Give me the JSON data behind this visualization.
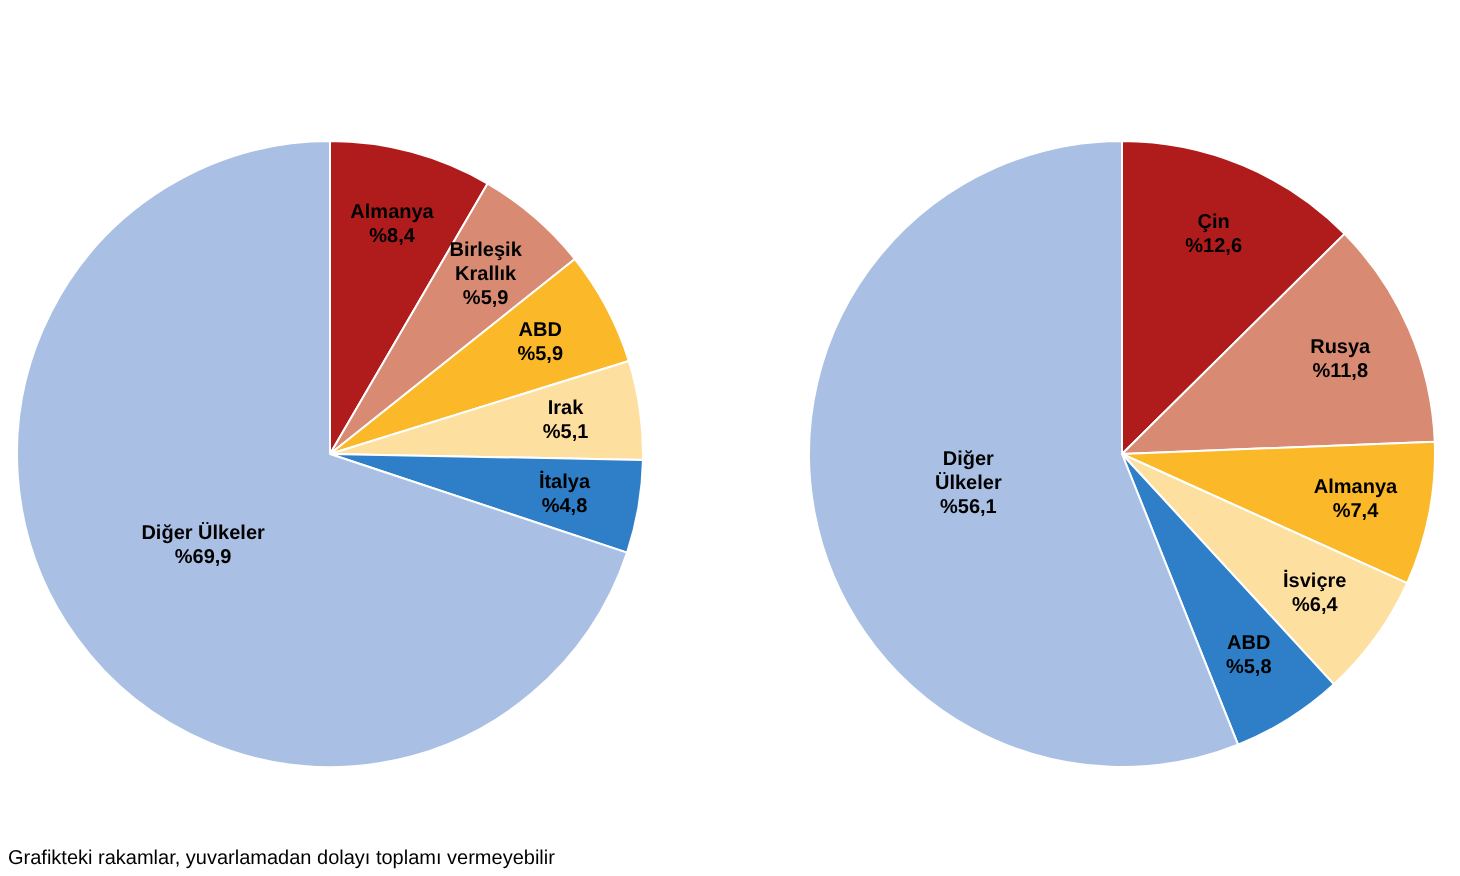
{
  "chart_data": [
    {
      "type": "pie",
      "categories": [
        "Almanya",
        "Birleşik Krallık",
        "ABD",
        "Irak",
        "İtalya",
        "Diğer Ülkeler"
      ],
      "values": [
        8.4,
        5.9,
        5.9,
        5.1,
        4.8,
        69.9
      ],
      "colors": [
        "#b01c1c",
        "#d98a72",
        "#fbb829",
        "#fde0a0",
        "#2e7fc8",
        "#a9c0e4"
      ],
      "value_labels": [
        "%8,4",
        "%5,9",
        "%5,9",
        "%5,1",
        "%4,8",
        "%69,9"
      ],
      "legend": false
    },
    {
      "type": "pie",
      "categories": [
        "Çin",
        "Rusya",
        "Almanya",
        "İsviçre",
        "ABD",
        "Diğer Ülkeler"
      ],
      "values": [
        12.6,
        11.8,
        7.4,
        6.4,
        5.8,
        56.1
      ],
      "colors": [
        "#b01c1c",
        "#d98a72",
        "#fbb829",
        "#fde0a0",
        "#2e7fc8",
        "#a9c0e4"
      ],
      "value_labels": [
        "%12,6",
        "%11,8",
        "%7,4",
        "%6,4",
        "%5,8",
        "%56,1"
      ],
      "legend": false,
      "annotations": [
        "Grafikteki rakamlar, yuvarlamadan dolayı toplamı vermeyebilir"
      ]
    }
  ]
}
